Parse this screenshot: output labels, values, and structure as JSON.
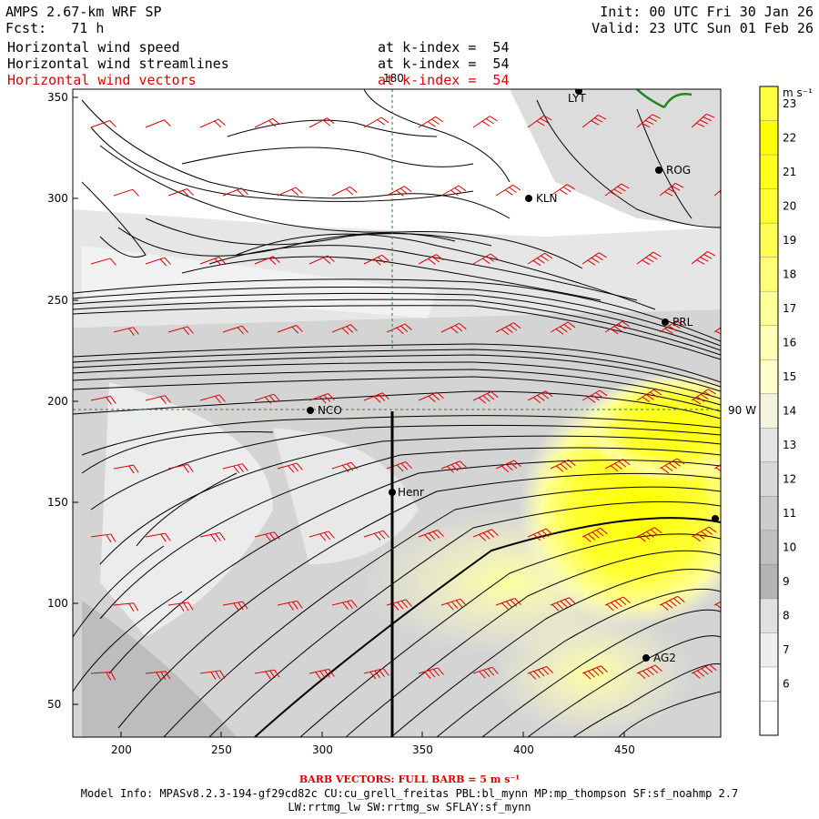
{
  "header": {
    "title": "AMPS 2.67-km WRF SP",
    "init": "Init: 00 UTC Fri 30 Jan 26",
    "fcst": "Fcst:   71 h",
    "valid": "Valid: 23 UTC Sun 01 Feb 26",
    "fields": [
      {
        "name": "Horizontal wind speed",
        "level": "at k-index =  54",
        "color": "#000000"
      },
      {
        "name": "Horizontal wind streamlines",
        "level": "at k-index =  54",
        "color": "#000000"
      },
      {
        "name": "Horizontal wind vectors",
        "level": "at k-index =  54",
        "color": "#e00000"
      }
    ]
  },
  "map": {
    "x_ticks": [
      "200",
      "250",
      "300",
      "350",
      "400",
      "450"
    ],
    "y_ticks": [
      "350",
      "300",
      "250",
      "200",
      "150",
      "100",
      "50"
    ],
    "lon_label": "180",
    "lat_label": "90 W",
    "stations": [
      "LYT",
      "ROG",
      "KLN",
      "PRL",
      "NCO",
      "Henr",
      "AG2"
    ]
  },
  "colorbar": {
    "unit": "m s⁻¹",
    "labels": [
      "23",
      "22",
      "21",
      "20",
      "19",
      "18",
      "17",
      "16",
      "15",
      "14",
      "13",
      "12",
      "11",
      "10",
      "9",
      "8",
      "7",
      "6"
    ],
    "colors": [
      "#ffff40",
      "#ffff00",
      "#ffff1a",
      "#ffff33",
      "#ffff55",
      "#ffff77",
      "#ffff99",
      "#ffffb3",
      "#ffffcc",
      "#f4f4dc",
      "#e4e4e4",
      "#d8d8d8",
      "#cccccc",
      "#c0c0c0",
      "#b4b4b4",
      "#e0e0e0",
      "#eeeeee",
      "#ffffff"
    ]
  },
  "footer": {
    "barb": "BARB VECTORS: FULL BARB = 5 m s⁻¹",
    "model_info": "Model Info: MPASv8.2.3-194-gf29cd82c CU:cu_grell_freitas PBL:bl_mynn MP:mp_thompson SF:sf_noahmp 2.7",
    "model_info2": "LW:rrtmg_lw SW:rrtmg_sw SFLAY:sf_mynn"
  }
}
